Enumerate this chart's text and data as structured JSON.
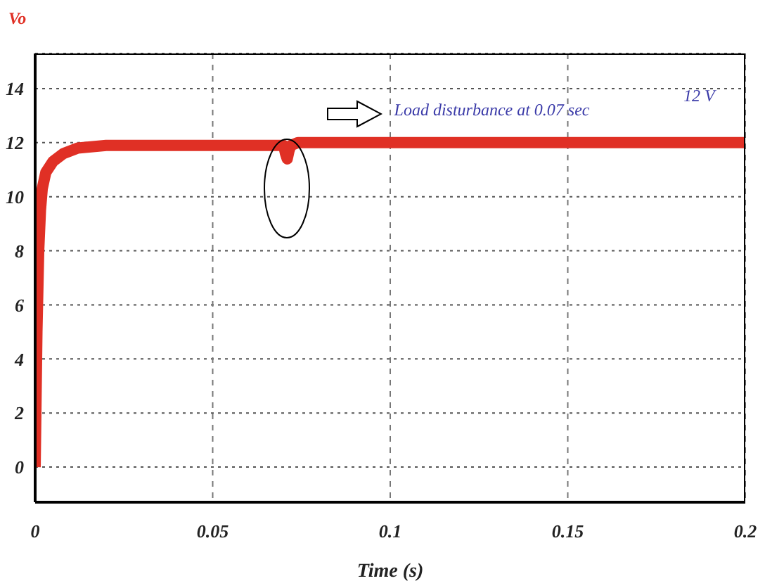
{
  "chart_data": {
    "type": "line",
    "ylabel": "Vo",
    "xlabel": "Time (s)",
    "annotations": [
      "Load disturbance at 0.07 sec",
      "12 V"
    ],
    "xlim": [
      0,
      0.2
    ],
    "xticks": [
      0,
      0.05,
      0.1,
      0.15,
      0.2
    ],
    "ylim": [
      -1.3,
      15.3
    ],
    "yticks": [
      0,
      2,
      4,
      6,
      8,
      10,
      12,
      14
    ],
    "grid": true,
    "marker": "none",
    "series": [
      {
        "color": "#e03025",
        "x": [
          0,
          0.0005,
          0.001,
          0.0015,
          0.002,
          0.003,
          0.005,
          0.008,
          0.012,
          0.02,
          0.05,
          0.07,
          0.0705,
          0.071,
          0.0715,
          0.072,
          0.074,
          0.1,
          0.15,
          0.2
        ],
        "values": [
          0,
          5,
          8,
          9.5,
          10.3,
          10.9,
          11.3,
          11.6,
          11.8,
          11.9,
          11.9,
          11.9,
          11.6,
          11.4,
          11.7,
          11.9,
          12,
          12,
          12,
          12
        ]
      }
    ]
  }
}
